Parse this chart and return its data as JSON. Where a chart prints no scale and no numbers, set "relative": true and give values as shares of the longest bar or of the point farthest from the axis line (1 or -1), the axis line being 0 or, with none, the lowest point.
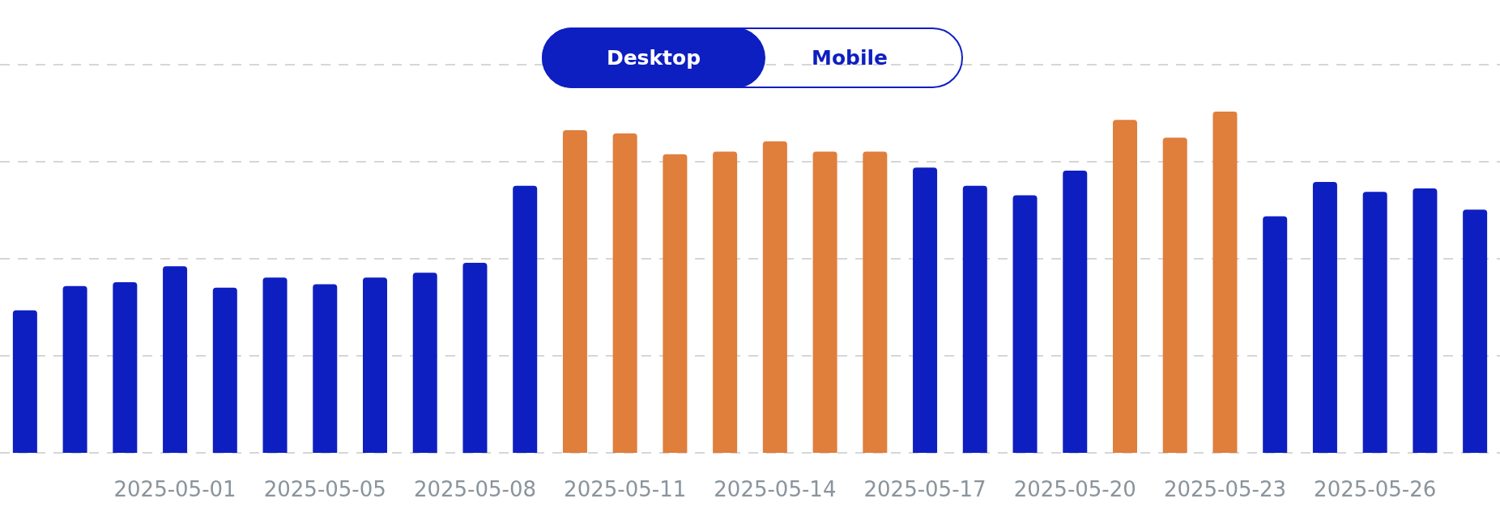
{
  "chart_data": {
    "type": "bar",
    "relative": true,
    "categories": [
      null,
      null,
      null,
      "2025-05-01",
      null,
      null,
      "2025-05-05",
      null,
      null,
      "2025-05-08",
      null,
      null,
      "2025-05-11",
      null,
      null,
      "2025-05-14",
      null,
      null,
      "2025-05-17",
      null,
      null,
      "2025-05-20",
      null,
      null,
      "2025-05-23",
      null,
      null,
      "2025-05-26",
      null,
      null
    ],
    "values": [
      0.418,
      0.489,
      0.5,
      0.547,
      0.484,
      0.514,
      0.494,
      0.514,
      0.528,
      0.557,
      0.783,
      0.946,
      0.936,
      0.875,
      0.883,
      0.913,
      0.883,
      0.883,
      0.836,
      0.783,
      0.755,
      0.827,
      0.976,
      0.924,
      1,
      0.693,
      0.794,
      0.765,
      0.775,
      0.713
    ],
    "colors": [
      "#0e1fc1",
      "#0e1fc1",
      "#0e1fc1",
      "#0e1fc1",
      "#0e1fc1",
      "#0e1fc1",
      "#0e1fc1",
      "#0e1fc1",
      "#0e1fc1",
      "#0e1fc1",
      "#0e1fc1",
      "#e07e3c",
      "#e07e3c",
      "#e07e3c",
      "#e07e3c",
      "#e07e3c",
      "#e07e3c",
      "#e07e3c",
      "#0e1fc1",
      "#0e1fc1",
      "#0e1fc1",
      "#0e1fc1",
      "#e07e3c",
      "#e07e3c",
      "#e07e3c",
      "#0e1fc1",
      "#0e1fc1",
      "#0e1fc1",
      "#0e1fc1",
      "#0e1fc1"
    ],
    "grid": "y",
    "annotations": [
      "Desktop",
      "Mobile"
    ]
  }
}
